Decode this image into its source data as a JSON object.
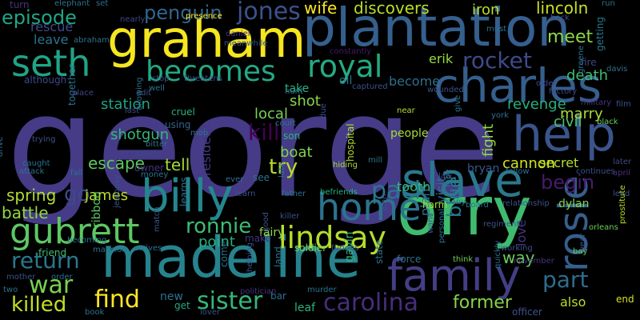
{
  "words": {
    "george": "george",
    "orry": "orry",
    "madeline": "madeline",
    "plantation": "plantation",
    "graham": "graham",
    "charles": "charles",
    "help": "help",
    "billy": "billy",
    "slave": "slave",
    "family": "family",
    "home": "home",
    "seth": "seth",
    "gubrett": "gubrett",
    "becomes": "becomes",
    "royal": "royal",
    "rosie": "rosie",
    "lindsay": "lindsay",
    "pack": "pack",
    "carolina": "carolina",
    "war": "war",
    "sister": "sister",
    "find": "find",
    "return": "return",
    "killed": "killed",
    "ronnie": "ronnie",
    "part": "part",
    "rocket": "rocket",
    "jones": "jones",
    "penguin": "penguin",
    "episode": "episode",
    "wife": "wife",
    "discovers": "discovers",
    "iron": "iron",
    "lincoln": "lincoln",
    "meet": "meet",
    "try": "try",
    "kill": "kill",
    "go": "go",
    "tell": "tell",
    "begin": "begin",
    "former": "former",
    "blue": "blue",
    "way": "way",
    "spring": "spring",
    "battle": "battle",
    "shot": "shot",
    "station": "station",
    "escape": "escape",
    "boat": "boat",
    "revenge": "revenge",
    "civil": "civil",
    "marry": "marry",
    "death": "death",
    "become": "become",
    "cannon": "cannon",
    "point": "point",
    "james": "james",
    "tooth": "tooth",
    "shotgun": "shotgun",
    "president": "president",
    "local": "local",
    "erik": "erik",
    "rescue": "rescue",
    "leave": "leave",
    "although": "although",
    "take": "take",
    "oil": "oil",
    "secret": "secret",
    "fight": "fight",
    "plan": "plan",
    "visit": "visit",
    "hospital": "hospital",
    "people": "people",
    "bryan": "bryan",
    "ribbon": "ribbon",
    "dylan": "dylan",
    "soldier": "soldier",
    "fairy": "fairy",
    "gavin": "gavin",
    "love": "love",
    "also": "also",
    "end": "end",
    "new": "new",
    "get": "get",
    "friend": "friend",
    "using": "using",
    "together": "together",
    "cruel": "cruel",
    "son": "son",
    "edit": "edit",
    "last": "last",
    "stop": "stop",
    "well": "well",
    "nearly": "nearly",
    "presence": "presence",
    "daniel": "daniel",
    "meanwhile": "meanwhile",
    "constantly": "constantly",
    "must": "must",
    "back": "back",
    "run": "run",
    "film": "film",
    "davis": "davis",
    "getting": "getting",
    "fire": "fire",
    "factory": "factory",
    "older": "older",
    "greene": "greene",
    "military": "military",
    "black": "black",
    "near": "near",
    "give": "give",
    "york": "york",
    "wounded": "wounded",
    "captured": "captured",
    "hunt": "hunt",
    "court": "court",
    "due": "due",
    "mill": "mill",
    "hiding": "hiding",
    "late": "late",
    "father": "father",
    "befriends": "befriends",
    "law": "law",
    "tape": "tape",
    "fellow": "fellow",
    "continues": "continues",
    "later": "later",
    "april": "april",
    "lead": "lead",
    "relationship": "relationship",
    "board": "board",
    "harm": "harm",
    "many": "many",
    "john": "john",
    "regiment": "regiment",
    "want": "want",
    "personal": "personal",
    "working": "working",
    "think": "think",
    "bay": "bay",
    "orleans": "orleans",
    "prostitute": "prostitute",
    "november": "november",
    "quickly": "quickly",
    "year": "year",
    "officer": "officer",
    "force": "force",
    "state": "state",
    "land": "land",
    "murder": "murder",
    "leaf": "leaf",
    "bar": "bar",
    "politician": "politician",
    "lover": "lover",
    "book": "book",
    "come": "come",
    "helping": "helping",
    "make": "make",
    "furious": "furious",
    "good": "good",
    "learns": "learns",
    "see": "see",
    "ever": "ever",
    "learn": "learn",
    "killer": "killer",
    "taken": "taken",
    "owner": "owner",
    "money": "money",
    "arrives": "arrives",
    "mansion": "mansion",
    "match": "match",
    "jealousy": "jealousy",
    "becoming": "becoming",
    "fall": "fall",
    "caught": "caught",
    "attack": "attack",
    "drive": "drive",
    "trying": "trying",
    "mob": "mob",
    "bitter": "bitter",
    "allowing": "allowing",
    "threatens": "threatens",
    "place": "place",
    "abraham": "abraham",
    "elephant": "elephant",
    "set": "set",
    "turn": "turn",
    "neighbor": "neighbor",
    "however": "however",
    "order": "order",
    "mother": "mother",
    "two": "two"
  }
}
